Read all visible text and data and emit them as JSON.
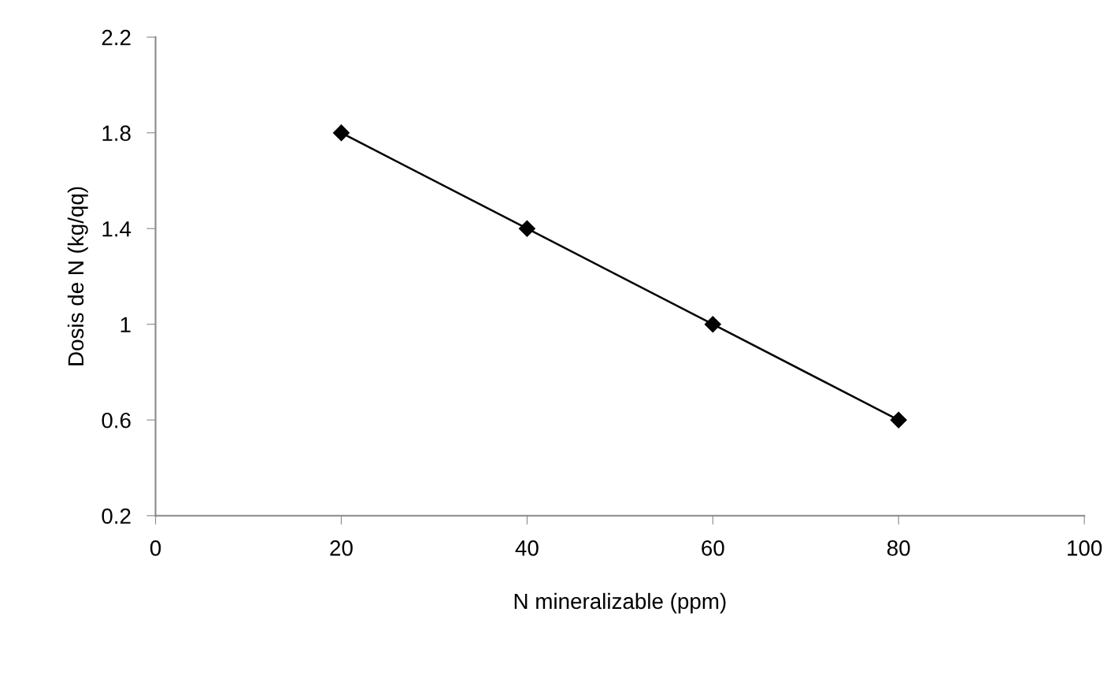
{
  "chart_data": {
    "type": "line",
    "xlabel": "N mineralizable (ppm)",
    "ylabel": "Dosis de N (kg/qq)",
    "x": [
      20,
      40,
      60,
      80
    ],
    "series": [
      {
        "color": "#000000",
        "values": [
          1.8,
          1.4,
          1.0,
          0.6
        ]
      }
    ],
    "marker": "diamond",
    "line_style": "solid",
    "grid": false,
    "xlim": [
      0,
      100
    ],
    "xticks": [
      0,
      20,
      40,
      60,
      80,
      100
    ],
    "ylim": [
      0.2,
      2.2
    ],
    "yticks": [
      0.2,
      0.6,
      1,
      1.4,
      1.8,
      2.2
    ]
  }
}
